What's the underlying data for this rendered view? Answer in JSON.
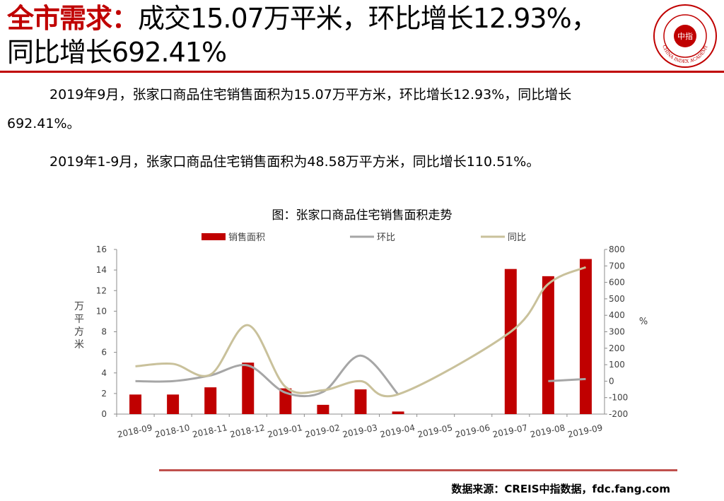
{
  "header": {
    "title_highlight": "全市需求：",
    "title_rest_line1": "成交15.07万平米，环比增长12.93%，",
    "title_rest_line2": "同比增长692.41%",
    "logo_text": "中指",
    "logo_ring_text": "CHINA INDEX ACADEMY"
  },
  "body": {
    "para1_line1": "2019年9月，张家口商品住宅销售面积为15.07万平方米，环比增长12.93%，同比增长",
    "para1_line2": "692.41%。",
    "para2": "2019年1-9月，张家口商品住宅销售面积为48.58万平方米，同比增长110.51%。"
  },
  "chart_data": {
    "type": "bar+line",
    "title": "图：张家口商品住宅销售面积走势",
    "categories": [
      "2018-09",
      "2018-10",
      "2018-11",
      "2018-12",
      "2019-01",
      "2019-02",
      "2019-03",
      "2019-04",
      "2019-05",
      "2019-06",
      "2019-07",
      "2019-08",
      "2019-09"
    ],
    "series": [
      {
        "name": "销售面积",
        "type": "bar",
        "axis": "left",
        "color": "#c00000",
        "values": [
          1.9,
          1.9,
          2.6,
          5.0,
          2.5,
          0.9,
          2.4,
          0.25,
          null,
          null,
          14.1,
          13.4,
          15.07
        ]
      },
      {
        "name": "环比",
        "type": "line",
        "axis": "right",
        "color": "#a6a6a6",
        "values": [
          0,
          0,
          35,
          95,
          -70,
          -65,
          155,
          -80,
          null,
          null,
          null,
          0,
          12.93
        ]
      },
      {
        "name": "同比",
        "type": "line",
        "axis": "right",
        "color": "#c9c19b",
        "values": [
          90,
          105,
          40,
          340,
          -35,
          -55,
          0,
          -80,
          null,
          null,
          300,
          590,
          692.41
        ]
      }
    ],
    "left_axis": {
      "label": "万平方米",
      "min": 0,
      "max": 16,
      "ticks": [
        "0",
        "2",
        "4",
        "6",
        "8",
        "10",
        "12",
        "14",
        "16"
      ]
    },
    "right_axis": {
      "label": "%",
      "min": -200,
      "max": 800,
      "ticks": [
        "-200",
        "-100",
        "0",
        "100",
        "200",
        "300",
        "400",
        "500",
        "600",
        "700",
        "800"
      ]
    },
    "legend_position": "top",
    "grid": false
  },
  "footer": {
    "source": "数据来源：CREIS中指数据，fdc.fang.com"
  }
}
